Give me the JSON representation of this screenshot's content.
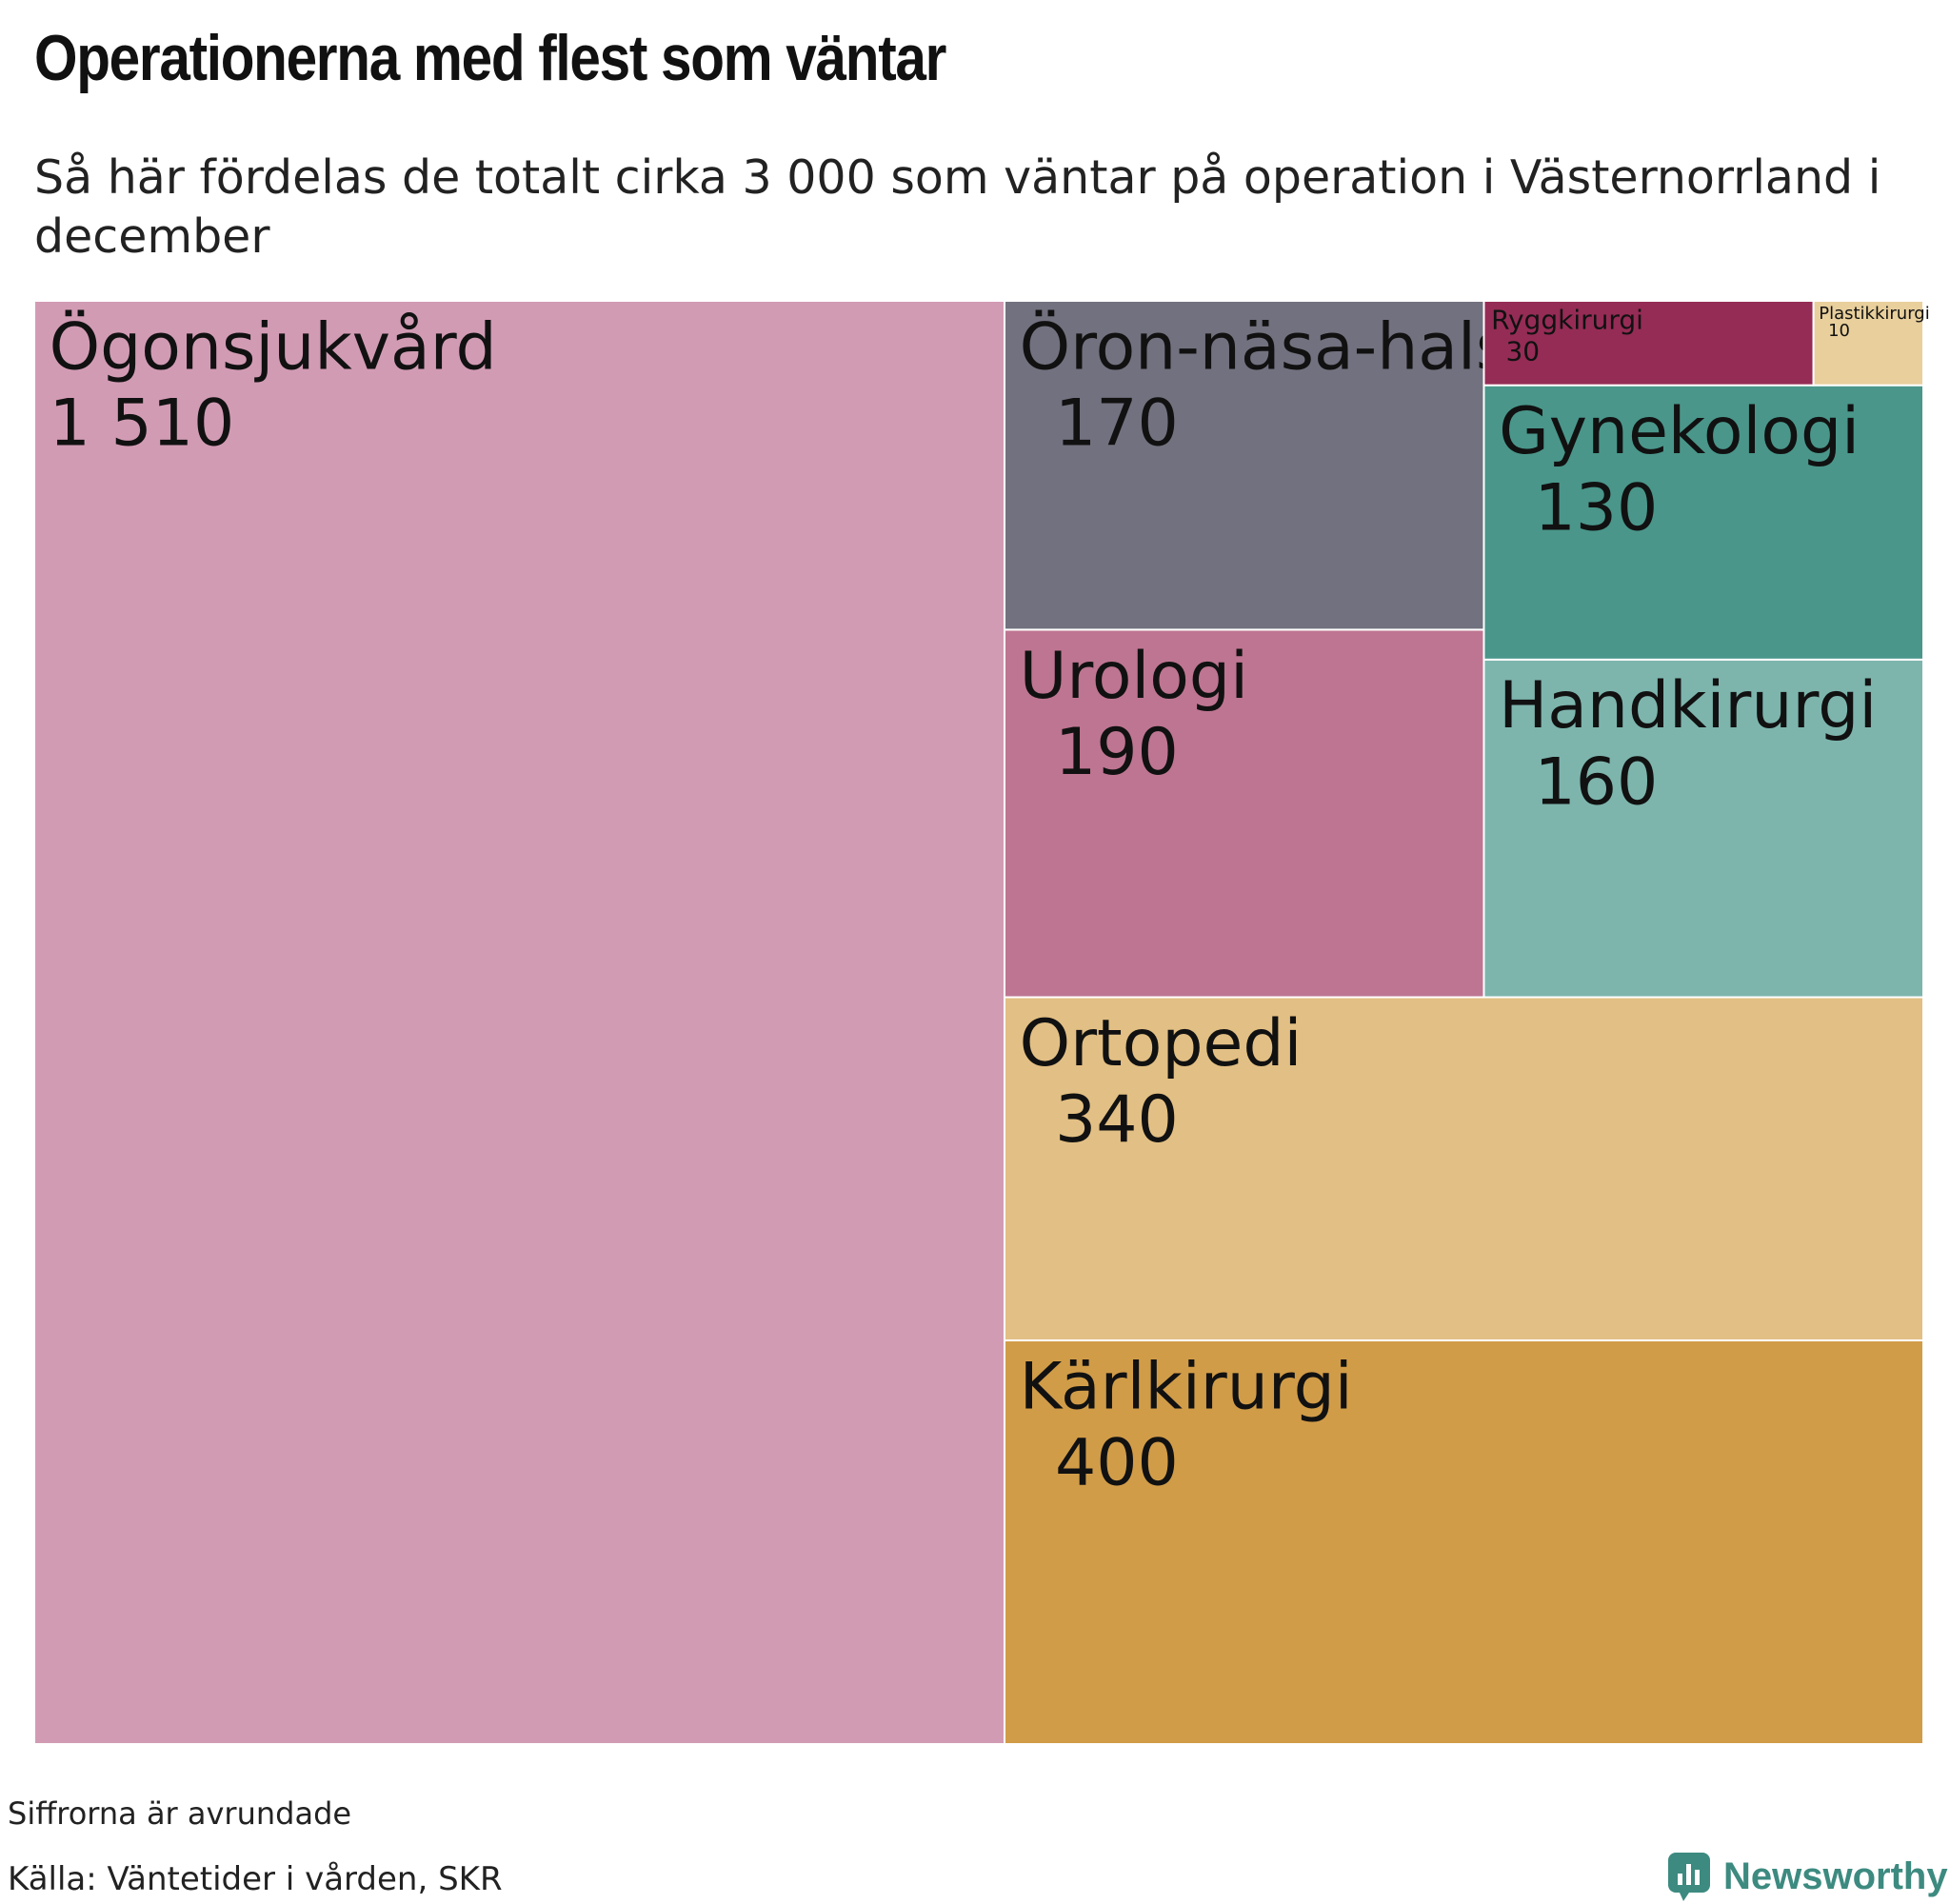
{
  "title": "Operationerna med flest som väntar",
  "subtitle": "Så här fördelas de totalt cirka 3 000 som väntar på operation i Västernorrland i december",
  "note": "Siffrorna är avrundade",
  "source": "Källa: Väntetider i vården, SKR",
  "brand": "Newsworthy",
  "brand_icon": "newsworthy-logo-icon",
  "chart_data": {
    "type": "treemap",
    "title": "Operationerna med flest som väntar",
    "unit": "antal väntande",
    "items": [
      {
        "label": "Ögonsjukvård",
        "value": 1510,
        "display": "1 510",
        "color": "#d29bb4"
      },
      {
        "label": "Kärlkirurgi",
        "value": 400,
        "display": "400",
        "color": "#d19c48"
      },
      {
        "label": "Ortopedi",
        "value": 340,
        "display": "340",
        "color": "#e2bf84"
      },
      {
        "label": "Urologi",
        "value": 190,
        "display": "190",
        "color": "#be7591"
      },
      {
        "label": "Öron-näsa-hals",
        "value": 170,
        "display": "170",
        "color": "#72717f"
      },
      {
        "label": "Handkirurgi",
        "value": 160,
        "display": "160",
        "color": "#7db5ad"
      },
      {
        "label": "Gynekologi",
        "value": 130,
        "display": "130",
        "color": "#4a968a"
      },
      {
        "label": "Ryggkirurgi",
        "value": 30,
        "display": "30",
        "color": "#952c55"
      },
      {
        "label": "Plastikkirurgi",
        "value": 10,
        "display": "10",
        "color": "#e8cf9c"
      }
    ]
  }
}
